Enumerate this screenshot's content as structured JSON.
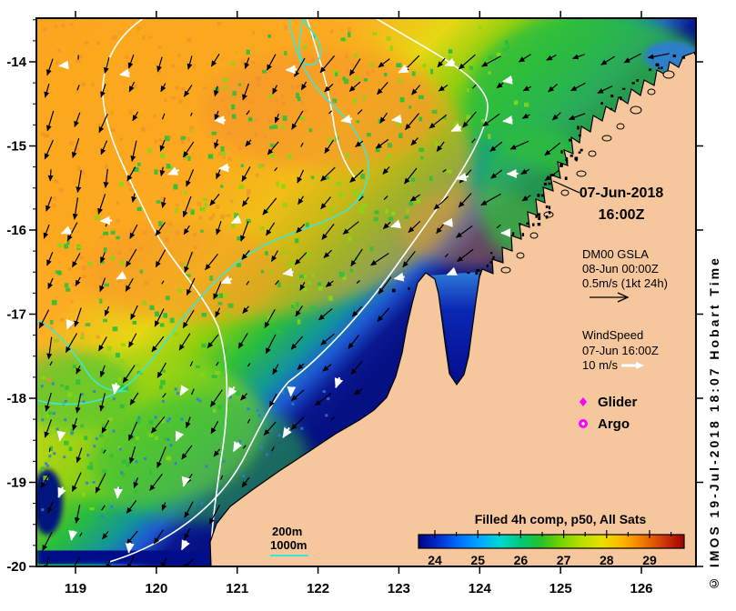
{
  "map": {
    "date_annotation": {
      "line1": "07-Jun-2018",
      "line2": "16:00Z"
    },
    "gsla_legend": {
      "title": "DM00 GSLA",
      "datetime": "08-Jun 00:00Z",
      "scale": "0.5m/s (1kt 24h)"
    },
    "wind_legend": {
      "title": "WindSpeed",
      "datetime": "07-Jun 16:00Z",
      "scale": "10 m/s"
    },
    "platform_legend": [
      {
        "symbol": "diamond",
        "label": "Glider"
      },
      {
        "symbol": "circle",
        "label": "Argo"
      }
    ],
    "bathymetry_legend": {
      "line1": "200m",
      "line2": "1000m"
    },
    "copyright": "© IMOS 19-Jul-2018 18:07 Hobart Time"
  },
  "axes": {
    "x_ticks": [
      "119",
      "120",
      "121",
      "122",
      "123",
      "124",
      "125",
      "126"
    ],
    "y_ticks": [
      "-14",
      "-15",
      "-16",
      "-17",
      "-18",
      "-19",
      "-20"
    ]
  },
  "colorbar": {
    "title": "Filled 4h comp, p50, All Sats",
    "tick_labels": [
      "24",
      "25",
      "26",
      "27",
      "28",
      "29"
    ],
    "range_min": 23.6,
    "range_max": 29.7
  },
  "colors": {
    "land": "#F6C79C",
    "frame": "#000000",
    "contour_200m": "#FFFFFF",
    "contour_1000m": "#3CE8D4",
    "current_arrow": "#000000",
    "wind_arrow": "#FFFFFF",
    "glider_marker": "#FF00FF",
    "argo_marker": "#FF00FF",
    "sst_scale": [
      "#000080",
      "#0030D0",
      "#0070FF",
      "#00A8FF",
      "#00D8D0",
      "#00C878",
      "#28C028",
      "#78D400",
      "#B8E000",
      "#E8E000",
      "#FFB400",
      "#F07800",
      "#D03808",
      "#A00000"
    ]
  },
  "chart_data": {
    "type": "heatmap",
    "title": "Filled 4h comp, p50, All Sats",
    "x_range": [
      118.5,
      126.7
    ],
    "y_range": [
      -20,
      -13.5
    ],
    "colorbar_ticks": [
      24,
      25,
      26,
      27,
      28,
      29
    ],
    "overlays": [
      "GSLA current vectors",
      "wind vectors",
      "200m isobath",
      "1000m isobath"
    ]
  }
}
